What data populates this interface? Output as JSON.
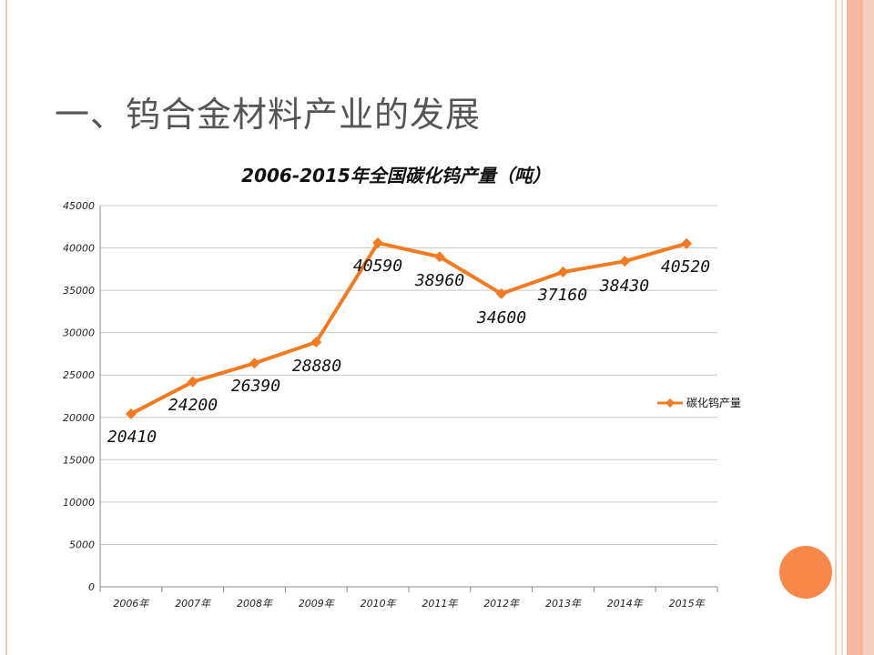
{
  "slide": {
    "title": "一、钨合金材料产业的发展"
  },
  "colors": {
    "series": "#f47a20",
    "accent_circle": "#f7884a",
    "frame": "#f3b89f",
    "grid": "#c8c8c8",
    "text": "#555555"
  },
  "chart_data": {
    "type": "line",
    "title": "2006-2015年全国碳化钨产量（吨）",
    "xlabel": "",
    "ylabel": "",
    "categories": [
      "2006年",
      "2007年",
      "2008年",
      "2009年",
      "2010年",
      "2011年",
      "2012年",
      "2013年",
      "2014年",
      "2015年"
    ],
    "series": [
      {
        "name": "碳化钨产量",
        "values": [
          20410,
          24200,
          26390,
          28880,
          40590,
          38960,
          34600,
          37160,
          38430,
          40520
        ],
        "labels": [
          "20410",
          "24200",
          "26390",
          "28880",
          "40590",
          "38960",
          "34600",
          "37160",
          "38430",
          "40520"
        ]
      }
    ],
    "y_ticks": [
      "0",
      "5000",
      "10000",
      "15000",
      "20000",
      "25000",
      "30000",
      "35000",
      "40000",
      "45000"
    ],
    "ylim": [
      0,
      45000
    ],
    "grid": true,
    "legend_position": "right",
    "marker": "diamond"
  }
}
